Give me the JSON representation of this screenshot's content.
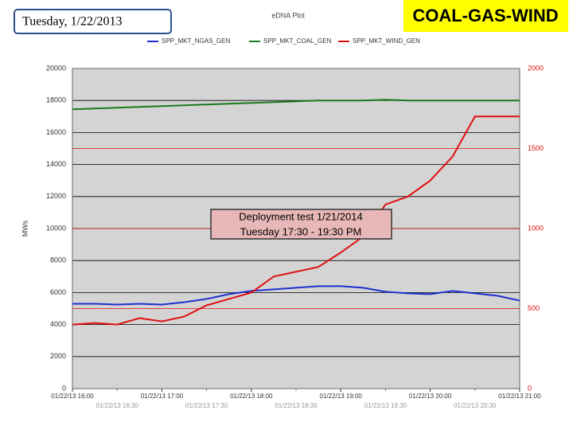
{
  "chart_data": {
    "type": "line",
    "title": "eDNA Plot",
    "date_label": "Tuesday, 1/22/2013",
    "banner": "COAL-GAS-WIND",
    "ylabel": "MWs",
    "annotation": [
      "Deployment test   1/21/2014",
      "Tuesday  17:30  -  19:30  PM"
    ],
    "x": [
      16,
      16.25,
      16.5,
      16.75,
      17,
      17.25,
      17.5,
      17.75,
      18,
      18.25,
      18.5,
      18.75,
      19,
      19.25,
      19.5,
      19.75,
      20,
      20.25,
      20.5,
      20.75,
      21
    ],
    "xlim": [
      16,
      21
    ],
    "xticks": [
      {
        "value": 16,
        "label": "01/22/13 16:00"
      },
      {
        "value": 17,
        "label": "01/22/13 17:00"
      },
      {
        "value": 18,
        "label": "01/22/13 18:00"
      },
      {
        "value": 19,
        "label": "01/22/13 19:00"
      },
      {
        "value": 20,
        "label": "01/22/13 20:00"
      },
      {
        "value": 21,
        "label": "01/22/13 21:00"
      }
    ],
    "xminor_ticks": [
      {
        "value": 16.5,
        "label": "01/22/13 16:30"
      },
      {
        "value": 17.5,
        "label": "01/22/13 17:30"
      },
      {
        "value": 18.5,
        "label": "01/22/13 18:30"
      },
      {
        "value": 19.5,
        "label": "01/22/13 19:30"
      },
      {
        "value": 20.5,
        "label": "01/22/13 20:30"
      }
    ],
    "ylim": [
      0,
      20000
    ],
    "yticks": [
      0,
      2000,
      4000,
      6000,
      8000,
      10000,
      12000,
      14000,
      16000,
      18000,
      20000
    ],
    "y2lim": [
      0,
      2000
    ],
    "y2ticks": [
      0,
      500,
      1000,
      1500,
      2000
    ],
    "grid": true,
    "series": [
      {
        "name": "SPP_MKT_NGAS_GEN",
        "color": "#1f2fd0",
        "values": [
          5300,
          5300,
          5250,
          5300,
          5250,
          5400,
          5600,
          5900,
          6100,
          6200,
          6300,
          6400,
          6400,
          6300,
          6050,
          5950,
          5900,
          6100,
          5950,
          5800,
          5500
        ]
      },
      {
        "name": "SPP_MKT_COAL_GEN",
        "color": "#1a7a1a",
        "values": [
          17450,
          17500,
          17550,
          17600,
          17650,
          17700,
          17750,
          17800,
          17850,
          17900,
          17950,
          18000,
          18000,
          18000,
          18050,
          18000,
          18000,
          18000,
          18000,
          18000,
          18000
        ]
      },
      {
        "name": "SPP_MKT_WIND_GEN",
        "color": "#e01010",
        "axis": "y2",
        "values": [
          400,
          410,
          400,
          440,
          420,
          450,
          520,
          560,
          600,
          700,
          730,
          760,
          850,
          950,
          1150,
          1200,
          1300,
          1450,
          1700,
          1700,
          1700
        ]
      }
    ]
  }
}
